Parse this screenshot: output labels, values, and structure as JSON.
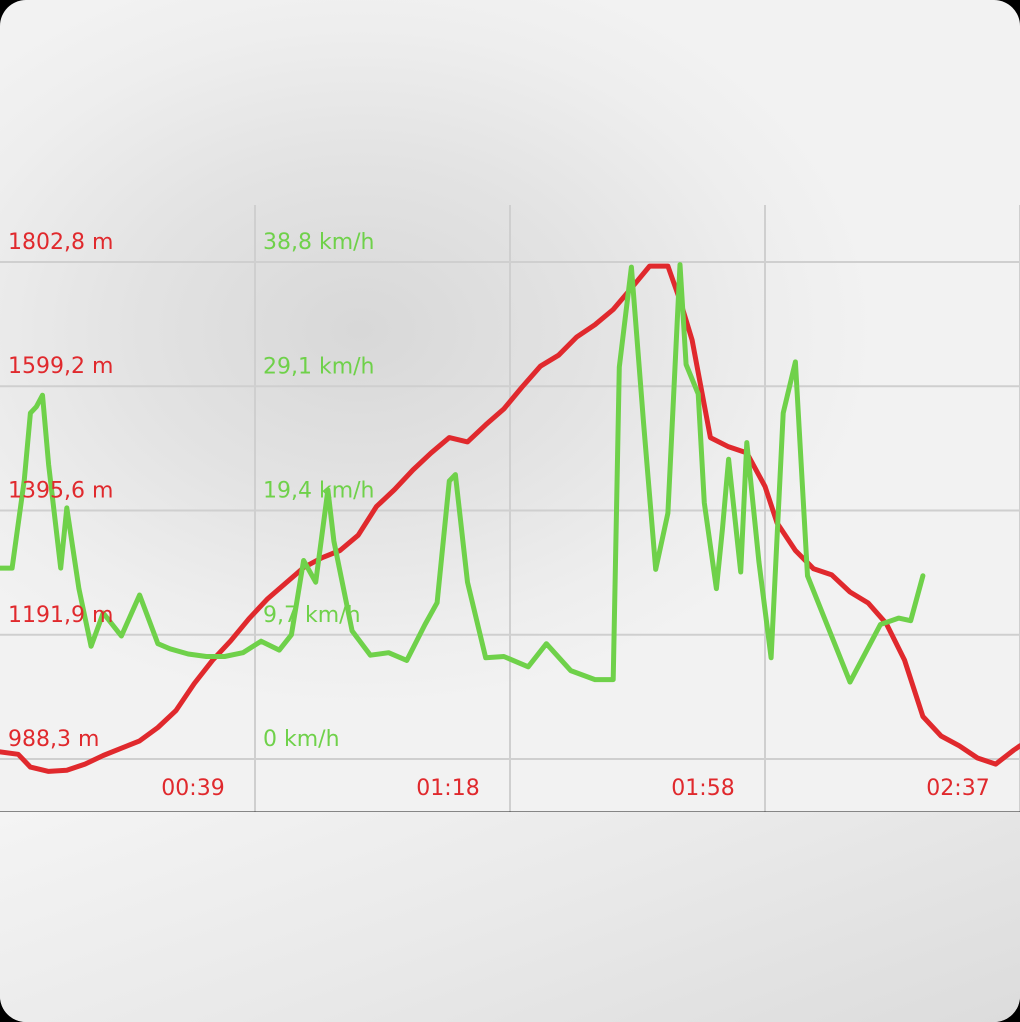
{
  "colors": {
    "altitude": "#e0292d",
    "speed": "#6fd14a",
    "grid": "#cfcfcf",
    "axis": "#1a1a1a"
  },
  "chart_data": {
    "type": "line",
    "x_unit": "elapsed time (hh:mm)",
    "x_range": [
      0,
      168
    ],
    "x_ticks": [
      {
        "t": 39,
        "label": "00:39"
      },
      {
        "t": 78,
        "label": "01:18"
      },
      {
        "t": 118,
        "label": "01:58"
      },
      {
        "t": 157,
        "label": "02:37"
      }
    ],
    "y_left": {
      "range": [
        988.3,
        1802.8
      ],
      "tick_values": [
        988.3,
        1191.9,
        1395.6,
        1599.2,
        1802.8
      ],
      "tick_labels": [
        "988,3 m",
        "1191,9 m",
        "1395,6 m",
        "1599,2 m",
        "1802,8 m"
      ]
    },
    "y_right": {
      "range": [
        0,
        38.8
      ],
      "tick_values": [
        0,
        9.7,
        19.4,
        29.1,
        38.8
      ],
      "tick_labels": [
        "0 km/h",
        "9,7 km/h",
        "19,4 km/h",
        "29,1 km/h",
        "38,8 km/h"
      ]
    },
    "grid": true,
    "series": [
      {
        "axis": "left",
        "color": "#e0292d",
        "points": [
          [
            0,
            1000
          ],
          [
            3,
            996
          ],
          [
            5,
            975
          ],
          [
            8,
            968
          ],
          [
            11,
            970
          ],
          [
            14,
            980
          ],
          [
            17,
            994
          ],
          [
            20,
            1006
          ],
          [
            23,
            1018
          ],
          [
            26,
            1040
          ],
          [
            29,
            1068
          ],
          [
            32,
            1112
          ],
          [
            35,
            1150
          ],
          [
            38,
            1182
          ],
          [
            41,
            1218
          ],
          [
            44,
            1250
          ],
          [
            47,
            1276
          ],
          [
            50,
            1302
          ],
          [
            53,
            1318
          ],
          [
            56,
            1330
          ],
          [
            59,
            1355
          ],
          [
            62,
            1402
          ],
          [
            65,
            1430
          ],
          [
            68,
            1462
          ],
          [
            71,
            1490
          ],
          [
            74,
            1515
          ],
          [
            77,
            1508
          ],
          [
            80,
            1536
          ],
          [
            83,
            1562
          ],
          [
            86,
            1598
          ],
          [
            89,
            1632
          ],
          [
            92,
            1650
          ],
          [
            95,
            1680
          ],
          [
            98,
            1700
          ],
          [
            101,
            1725
          ],
          [
            104,
            1760
          ],
          [
            107,
            1796
          ],
          [
            110,
            1796
          ],
          [
            112,
            1740
          ],
          [
            114,
            1675
          ],
          [
            117,
            1515
          ],
          [
            120,
            1500
          ],
          [
            123,
            1490
          ],
          [
            126,
            1435
          ],
          [
            128,
            1375
          ],
          [
            131,
            1330
          ],
          [
            134,
            1300
          ],
          [
            137,
            1290
          ],
          [
            140,
            1262
          ],
          [
            143,
            1244
          ],
          [
            146,
            1210
          ],
          [
            149,
            1150
          ],
          [
            152,
            1058
          ],
          [
            155,
            1026
          ],
          [
            158,
            1010
          ],
          [
            161,
            990
          ],
          [
            164,
            980
          ],
          [
            167,
            1003
          ],
          [
            168,
            1010
          ]
        ]
      },
      {
        "axis": "right",
        "color": "#6fd14a",
        "points": [
          [
            0,
            14.9
          ],
          [
            2,
            14.9
          ],
          [
            4,
            21.8
          ],
          [
            5,
            27
          ],
          [
            6,
            27.5
          ],
          [
            7,
            28.4
          ],
          [
            8,
            23
          ],
          [
            10,
            14.9
          ],
          [
            11,
            19.6
          ],
          [
            13,
            13.3
          ],
          [
            15,
            8.8
          ],
          [
            17,
            11.4
          ],
          [
            20,
            9.6
          ],
          [
            23,
            12.8
          ],
          [
            26,
            9.0
          ],
          [
            28,
            8.6
          ],
          [
            31,
            8.2
          ],
          [
            34,
            8.0
          ],
          [
            37,
            8.0
          ],
          [
            40,
            8.3
          ],
          [
            43,
            9.2
          ],
          [
            46,
            8.5
          ],
          [
            48,
            9.7
          ],
          [
            50,
            15.5
          ],
          [
            52,
            13.8
          ],
          [
            54,
            21
          ],
          [
            55,
            17
          ],
          [
            58,
            10
          ],
          [
            61,
            8.1
          ],
          [
            64,
            8.3
          ],
          [
            67,
            7.7
          ],
          [
            70,
            10.5
          ],
          [
            72,
            12.2
          ],
          [
            74,
            21.7
          ],
          [
            75,
            22.2
          ],
          [
            77,
            13.8
          ],
          [
            80,
            7.9
          ],
          [
            83,
            8.0
          ],
          [
            87,
            7.2
          ],
          [
            90,
            9.0
          ],
          [
            94,
            6.9
          ],
          [
            98,
            6.2
          ],
          [
            101,
            6.2
          ],
          [
            102,
            30.6
          ],
          [
            104,
            38.4
          ],
          [
            106,
            26.2
          ],
          [
            108,
            14.8
          ],
          [
            110,
            19.2
          ],
          [
            112,
            38.6
          ],
          [
            113,
            30.8
          ],
          [
            115,
            28.5
          ],
          [
            116,
            20
          ],
          [
            118,
            13.3
          ],
          [
            119,
            18.0
          ],
          [
            120,
            23.4
          ],
          [
            122,
            14.6
          ],
          [
            123,
            24.7
          ],
          [
            125,
            15.4
          ],
          [
            127,
            7.9
          ],
          [
            129,
            27
          ],
          [
            131,
            31
          ],
          [
            133,
            14.3
          ],
          [
            140,
            6.0
          ],
          [
            145,
            10.5
          ],
          [
            148,
            11.0
          ],
          [
            150,
            10.8
          ],
          [
            152,
            14.3
          ]
        ]
      }
    ]
  }
}
